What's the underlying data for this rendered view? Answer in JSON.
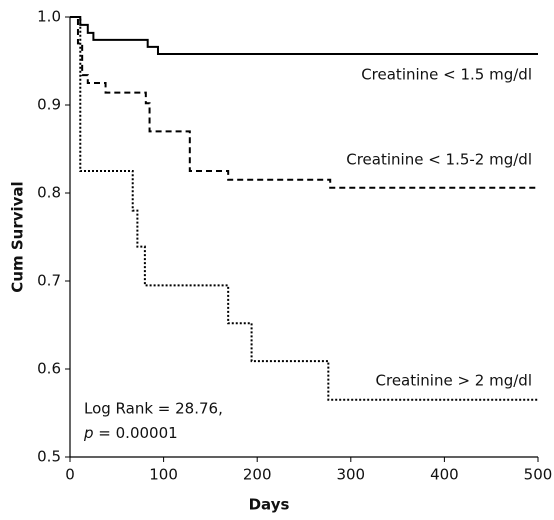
{
  "chart_data": {
    "type": "step-line",
    "x_label": "Days",
    "y_label": "Cum Survival",
    "xlim": [
      0,
      500
    ],
    "ylim": [
      0.5,
      1.0
    ],
    "xticks": [
      0,
      100,
      200,
      300,
      400,
      500
    ],
    "yticks": [
      0.5,
      0.6,
      0.7,
      0.8,
      0.9,
      {
        "value": 1.0,
        "label": "1.0"
      }
    ],
    "series": [
      {
        "name": "Creatinine < 1.5 mg/dl",
        "color": "#000000",
        "dash": "solid",
        "x": [
          0,
          11,
          11,
          19,
          19,
          25,
          25,
          83,
          83,
          94,
          94,
          500
        ],
        "values": [
          1.0,
          1.0,
          0.991,
          0.991,
          0.982,
          0.982,
          0.974,
          0.974,
          0.966,
          0.966,
          0.958,
          0.958
        ]
      },
      {
        "name": "Creatinine < 1.5-2 mg/dl",
        "color": "#000000",
        "dash": "dashed",
        "x": [
          0,
          8.5,
          8.5,
          13,
          13,
          19,
          19,
          38,
          38,
          81,
          81,
          85,
          85,
          128,
          128,
          169,
          169,
          278,
          278,
          500
        ],
        "values": [
          1.0,
          1.0,
          0.97,
          0.97,
          0.934,
          0.934,
          0.925,
          0.925,
          0.914,
          0.914,
          0.902,
          0.902,
          0.87,
          0.87,
          0.825,
          0.825,
          0.815,
          0.815,
          0.806,
          0.806
        ]
      },
      {
        "name": "Creatinine > 2 mg/dl",
        "color": "#000000",
        "dash": "dotted",
        "x": [
          0,
          11,
          11,
          67,
          67,
          72,
          72,
          80,
          80,
          169,
          169,
          194,
          194,
          276,
          276,
          500
        ],
        "values": [
          1.0,
          1.0,
          0.825,
          0.825,
          0.78,
          0.78,
          0.739,
          0.739,
          0.695,
          0.695,
          0.652,
          0.652,
          0.609,
          0.609,
          0.565,
          0.565
        ]
      }
    ],
    "annotation": {
      "line1": "Log Rank = 28.76,",
      "p": "p",
      "line2": " = 0.00001"
    }
  }
}
